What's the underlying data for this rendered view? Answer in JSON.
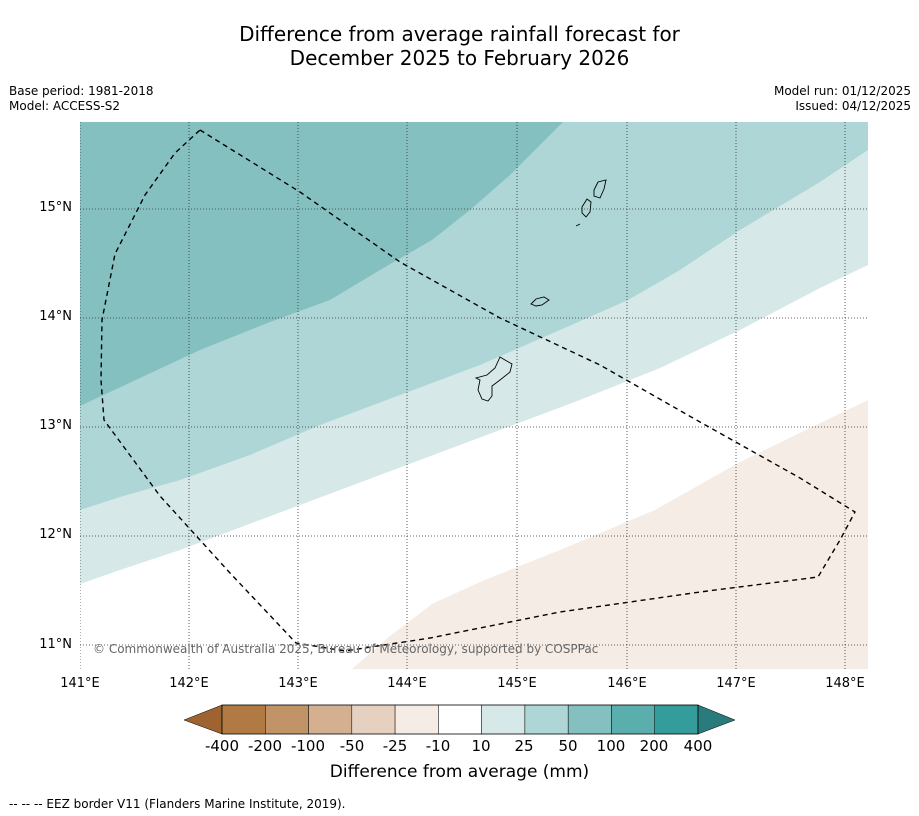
{
  "title": {
    "line1": "Difference from average rainfall forecast for",
    "line2": "December 2025 to February 2026"
  },
  "meta": {
    "base_period": "Base period: 1981-2018",
    "model": "Model: ACCESS-S2",
    "model_run": "Model run: 01/12/2025",
    "issued": "Issued: 04/12/2025"
  },
  "map": {
    "lat_labels": [
      "15°N",
      "14°N",
      "13°N",
      "12°N",
      "11°N"
    ],
    "lon_labels": [
      "141°E",
      "142°E",
      "143°E",
      "144°E",
      "145°E",
      "146°E",
      "147°E",
      "148°E"
    ],
    "copyright": "© Commonwealth of Australia 2025, Bureau of Meteorology, supported by COSPPac",
    "contour_bands": [
      {
        "range": "50 to 100",
        "color": "#85c0c0"
      },
      {
        "range": "25 to 50",
        "color": "#aed6d6"
      },
      {
        "range": "10 to 25",
        "color": "#d6e9e8"
      },
      {
        "range": "-10 to 10",
        "color": "#ffffff"
      },
      {
        "range": "-25 to -10",
        "color": "#f5ece6"
      }
    ]
  },
  "colorbar": {
    "labels": [
      "-400",
      "-200",
      "-100",
      "-50",
      "-25",
      "-10",
      "10",
      "25",
      "50",
      "100",
      "200",
      "400"
    ],
    "colors": [
      "#9e6330",
      "#b07a42",
      "#c19468",
      "#d4b091",
      "#e6d1c1",
      "#f5ece6",
      "#ffffff",
      "#d6e9e8",
      "#aed6d6",
      "#85c0c0",
      "#5aaeae",
      "#359c9c",
      "#2a7b7b"
    ],
    "title": "Difference from average (mm)"
  },
  "footnote": "--  --  -- EEZ border V11 (Flanders Marine Institute, 2019)."
}
